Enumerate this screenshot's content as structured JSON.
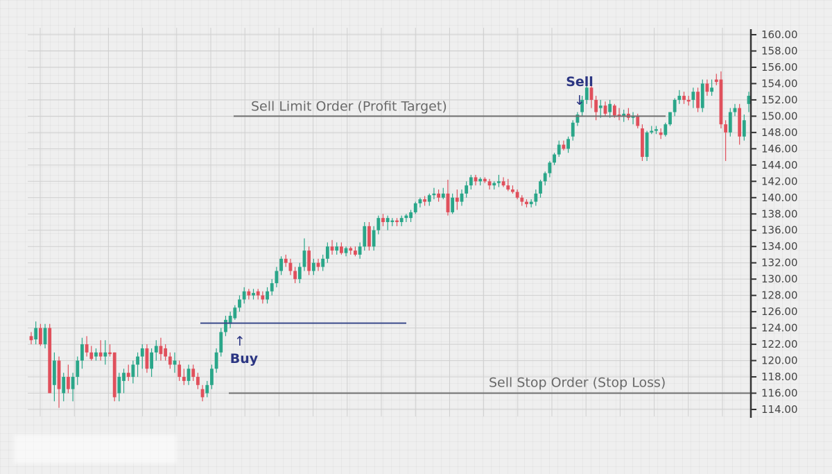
{
  "chart_data": {
    "type": "candlestick",
    "title": "",
    "xlabel": "",
    "ylabel": "",
    "ylim": [
      114,
      160
    ],
    "yticks": [
      "114.00",
      "116.00",
      "118.00",
      "120.00",
      "122.00",
      "124.00",
      "126.00",
      "128.00",
      "130.00",
      "132.00",
      "134.00",
      "136.00",
      "138.00",
      "140.00",
      "142.00",
      "144.00",
      "146.00",
      "148.00",
      "150.00",
      "152.00",
      "154.00",
      "156.00",
      "158.00",
      "160.00"
    ],
    "grid": true,
    "colors": {
      "up": "#2aa689",
      "down": "#e0505c",
      "level": "#6f6f6f",
      "entry": "#3a4a8a",
      "text_blue": "#2b3582",
      "text_gray": "#6a6a6a",
      "axis": "#333333"
    },
    "candles": [
      [
        123,
        123.5,
        122,
        122.5
      ],
      [
        122.6,
        124.8,
        122,
        124
      ],
      [
        124,
        124.5,
        121.8,
        122
      ],
      [
        122,
        124.5,
        121.5,
        124
      ],
      [
        124,
        124.5,
        116,
        116
      ],
      [
        117,
        121,
        115,
        120
      ],
      [
        120,
        120.5,
        114.2,
        116.5
      ],
      [
        116,
        118.5,
        115,
        118
      ],
      [
        118,
        119.5,
        116,
        116.5
      ],
      [
        116.5,
        118.5,
        115,
        118
      ],
      [
        118,
        120.5,
        117,
        120
      ],
      [
        120,
        122.8,
        119,
        122
      ],
      [
        122,
        123,
        120.5,
        121
      ],
      [
        121,
        121.8,
        120,
        120.2
      ],
      [
        120.5,
        121.5,
        120,
        121
      ],
      [
        121,
        122.5,
        120,
        120.5
      ],
      [
        120.5,
        122.5,
        119.5,
        121
      ],
      [
        121,
        122,
        120.5,
        120.8
      ],
      [
        121,
        121,
        115,
        115.5
      ],
      [
        116,
        118.5,
        115,
        118
      ],
      [
        117.5,
        119,
        116,
        118.5
      ],
      [
        118.5,
        119.5,
        117.5,
        118
      ],
      [
        118,
        120,
        117.2,
        119.5
      ],
      [
        119.5,
        121,
        118,
        120.5
      ],
      [
        120.5,
        122,
        119,
        121.5
      ],
      [
        121.5,
        122,
        118.5,
        119
      ],
      [
        119,
        121.5,
        118,
        121
      ],
      [
        121,
        122.5,
        120,
        121.8
      ],
      [
        121.8,
        122.8,
        120,
        120.8
      ],
      [
        121.5,
        122,
        120,
        120.5
      ],
      [
        120.5,
        121,
        119,
        119.5
      ],
      [
        119.5,
        121,
        118.5,
        120
      ],
      [
        119.5,
        120,
        117.5,
        118
      ],
      [
        118,
        119,
        117,
        117.5
      ],
      [
        117.5,
        119.5,
        117,
        119
      ],
      [
        119,
        119.5,
        117.5,
        118
      ],
      [
        118,
        118.5,
        116.5,
        117
      ],
      [
        116.5,
        117,
        115,
        115.5
      ],
      [
        116,
        117.5,
        115.5,
        117
      ],
      [
        117,
        119.5,
        116.5,
        119
      ],
      [
        119,
        121.5,
        118.5,
        121
      ],
      [
        121,
        124,
        120.5,
        123.5
      ],
      [
        123.5,
        125.5,
        123,
        125
      ],
      [
        124.5,
        126,
        124,
        125.5
      ],
      [
        125.2,
        126.8,
        125,
        126.5
      ],
      [
        126.5,
        128,
        126,
        127.5
      ],
      [
        127.5,
        129,
        127,
        128.5
      ],
      [
        128.5,
        128.8,
        127.5,
        128
      ],
      [
        128,
        128.8,
        127.5,
        128.3
      ],
      [
        128.5,
        128.8,
        127.5,
        128
      ],
      [
        128,
        128.5,
        127,
        127.5
      ],
      [
        127.5,
        129,
        127,
        128.5
      ],
      [
        128.5,
        130,
        128,
        129.5
      ],
      [
        129.5,
        131.5,
        129,
        131
      ],
      [
        131,
        132.8,
        130.5,
        132.5
      ],
      [
        132.5,
        133,
        131.5,
        132
      ],
      [
        132,
        132.5,
        130.5,
        131
      ],
      [
        131,
        131.5,
        129.5,
        130
      ],
      [
        130,
        132,
        129.5,
        131.5
      ],
      [
        131.5,
        135,
        131,
        133.5
      ],
      [
        133.5,
        134,
        130.5,
        131
      ],
      [
        131,
        132.5,
        130.5,
        132
      ],
      [
        132,
        132.5,
        131,
        131.5
      ],
      [
        131.5,
        133,
        131,
        132.5
      ],
      [
        132.5,
        134.5,
        132,
        134
      ],
      [
        134,
        134.8,
        133,
        133.5
      ],
      [
        133.5,
        134.5,
        133,
        134
      ],
      [
        134,
        134.5,
        133,
        133.2
      ],
      [
        133.2,
        134,
        132.8,
        133.8
      ],
      [
        133.8,
        134,
        133,
        133.5
      ],
      [
        133.5,
        134,
        132.8,
        133
      ],
      [
        133,
        134.5,
        132.5,
        134
      ],
      [
        134,
        137,
        133.5,
        136.5
      ],
      [
        136.5,
        137,
        133.5,
        134
      ],
      [
        134,
        136.5,
        133.5,
        136
      ],
      [
        136,
        137.8,
        135.5,
        137.5
      ],
      [
        137.5,
        138,
        136.5,
        137
      ],
      [
        137,
        137.8,
        136,
        137.5
      ],
      [
        137,
        137.5,
        136.5,
        137.2
      ],
      [
        137.2,
        137.5,
        136.5,
        137
      ],
      [
        137,
        137.8,
        136.5,
        137.5
      ],
      [
        137.5,
        138,
        137,
        137.8
      ],
      [
        137.5,
        138.5,
        137,
        138.2
      ],
      [
        138.2,
        139.5,
        138,
        139.3
      ],
      [
        139.3,
        140,
        138.8,
        139.8
      ],
      [
        139.8,
        140.2,
        139,
        139.5
      ],
      [
        139.5,
        140.5,
        139,
        140.3
      ],
      [
        140.3,
        141.2,
        139.8,
        140.5
      ],
      [
        140.5,
        141,
        139.5,
        140
      ],
      [
        140,
        141.2,
        139.8,
        140.5
      ],
      [
        140.5,
        142.2,
        137.8,
        138.2
      ],
      [
        138.2,
        140.5,
        138,
        140
      ],
      [
        140,
        141,
        138.5,
        139.5
      ],
      [
        139.5,
        141,
        139,
        140.5
      ],
      [
        140.5,
        142,
        140,
        141.5
      ],
      [
        141.5,
        142.8,
        141,
        142.5
      ],
      [
        142.5,
        142.8,
        141.5,
        142
      ],
      [
        142,
        142.5,
        141.5,
        142.3
      ],
      [
        142.3,
        142.5,
        141.8,
        142
      ],
      [
        142,
        142.3,
        141,
        141.5
      ],
      [
        141.5,
        142,
        141,
        141.8
      ],
      [
        141.8,
        142.8,
        141.3,
        142
      ],
      [
        142,
        142.5,
        141.3,
        141.5
      ],
      [
        141.5,
        142.3,
        140.8,
        141
      ],
      [
        141,
        141.5,
        140.5,
        140.7
      ],
      [
        140.7,
        141,
        139.8,
        140
      ],
      [
        140,
        140.3,
        139,
        139.5
      ],
      [
        139.5,
        139.8,
        138.8,
        139.2
      ],
      [
        139.2,
        139.8,
        138.8,
        139.5
      ],
      [
        139.5,
        141,
        139,
        140.5
      ],
      [
        140.5,
        142.2,
        140,
        142
      ],
      [
        142,
        143.2,
        141.5,
        143
      ],
      [
        143,
        144.5,
        142.5,
        144.3
      ],
      [
        144.3,
        145.5,
        144,
        145.3
      ],
      [
        145.3,
        147,
        145,
        146.5
      ],
      [
        146.5,
        147,
        145.8,
        146
      ],
      [
        146,
        147.5,
        145.5,
        147.2
      ],
      [
        147.5,
        149.5,
        147,
        149.2
      ],
      [
        149.2,
        150.5,
        148.8,
        150.2
      ],
      [
        150.5,
        152.5,
        150,
        152
      ],
      [
        152,
        154.2,
        151.5,
        153.5
      ],
      [
        153.5,
        154,
        151,
        152
      ],
      [
        152,
        152.5,
        149.5,
        150.5
      ],
      [
        151,
        152,
        149.8,
        151.3
      ],
      [
        151.3,
        151.8,
        150,
        150.3
      ],
      [
        150.5,
        152,
        149.8,
        151.5
      ],
      [
        151.3,
        151.5,
        149.8,
        150.1
      ],
      [
        150.2,
        151,
        149.5,
        150
      ],
      [
        150,
        150.8,
        149.3,
        150.3
      ],
      [
        150.3,
        151,
        149.5,
        149.8
      ],
      [
        149.8,
        150.5,
        149,
        150
      ],
      [
        150,
        150.3,
        148.5,
        148.8
      ],
      [
        148.5,
        149,
        144.5,
        145
      ],
      [
        145,
        148.2,
        144.5,
        148
      ],
      [
        148,
        148.8,
        147.8,
        148.2
      ],
      [
        148.2,
        148.8,
        147.8,
        148.4
      ],
      [
        148,
        148.5,
        147.2,
        147.7
      ],
      [
        147.7,
        149.2,
        147.5,
        149
      ],
      [
        149,
        150.5,
        148.8,
        150.5
      ],
      [
        150.5,
        152.2,
        150,
        152
      ],
      [
        152,
        153.2,
        151.5,
        152.5
      ],
      [
        152.5,
        153,
        151.5,
        152
      ],
      [
        152,
        152.5,
        151.3,
        151.8
      ],
      [
        152,
        153.5,
        151,
        153
      ],
      [
        153,
        153.5,
        150.5,
        151
      ],
      [
        151,
        154.5,
        150.5,
        154
      ],
      [
        154,
        154.5,
        152.5,
        153
      ],
      [
        153,
        154.5,
        152.5,
        153.5
      ],
      [
        154.5,
        155.2,
        153.8,
        154.2
      ],
      [
        154.5,
        155.5,
        148.5,
        149
      ],
      [
        149,
        149.5,
        144.5,
        148
      ],
      [
        148,
        151,
        147.5,
        150.5
      ],
      [
        150.5,
        151.5,
        150,
        151
      ],
      [
        151,
        151.5,
        146.5,
        147.5
      ],
      [
        147.5,
        150.2,
        147,
        149.5
      ],
      [
        151.5,
        153,
        150.5,
        152.5
      ]
    ],
    "levels": [
      {
        "name": "sell-limit",
        "price": 150,
        "label": "Sell Limit Order (Profit Target)"
      },
      {
        "name": "buy-entry",
        "price": 124.6,
        "label": ""
      },
      {
        "name": "sell-stop",
        "price": 116,
        "label": "Sell Stop Order (Stop Loss)"
      }
    ],
    "markers": [
      {
        "name": "buy",
        "label": "Buy",
        "arrow": "↑"
      },
      {
        "name": "sell",
        "label": "Sell",
        "arrow": "↓"
      }
    ]
  }
}
